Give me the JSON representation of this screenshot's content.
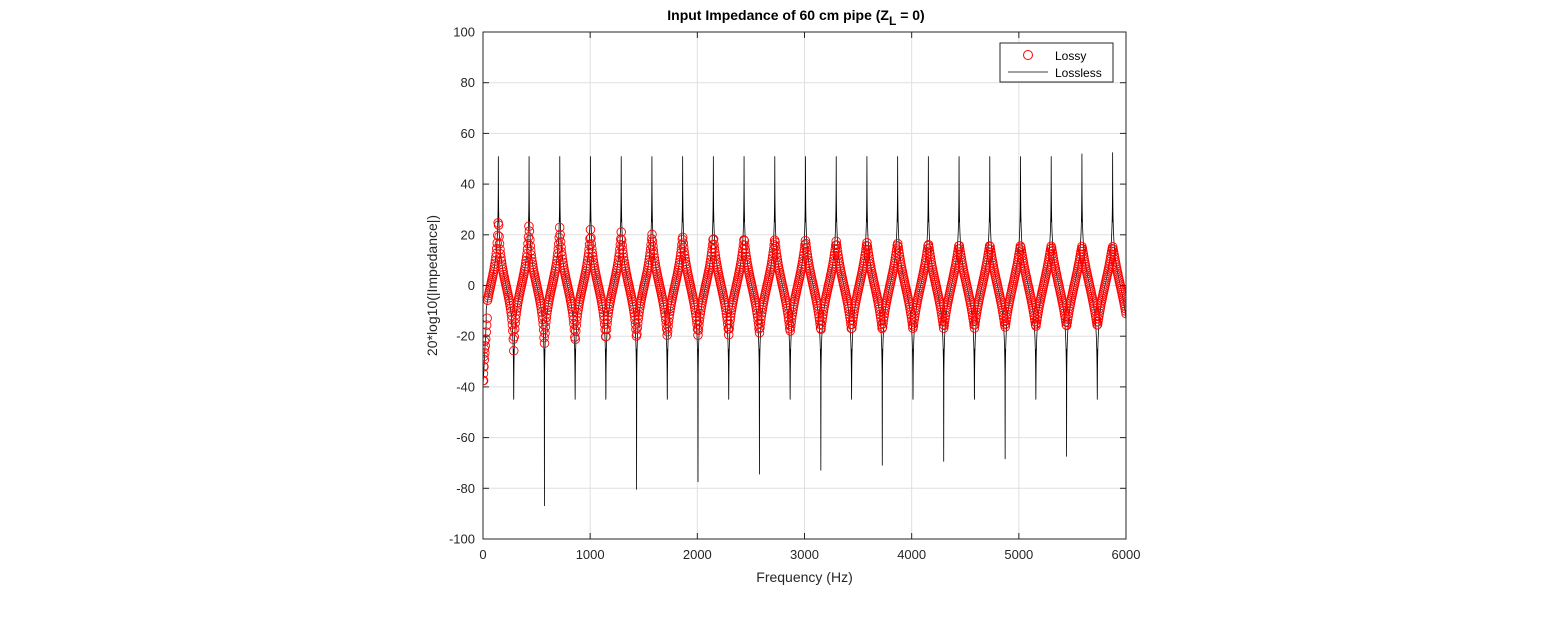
{
  "chart_data": {
    "type": "line",
    "title_main": "Input Impedance of 60 cm pipe (Z",
    "title_sub": "L",
    "title_tail": " = 0)",
    "xlabel": "Frequency (Hz)",
    "ylabel": "20*log10(|Impedance|)",
    "xlim": [
      0,
      6000
    ],
    "ylim": [
      -100,
      100
    ],
    "x_ticks": [
      0,
      1000,
      2000,
      3000,
      4000,
      5000,
      6000
    ],
    "y_ticks": [
      -100,
      -80,
      -60,
      -40,
      -20,
      0,
      20,
      40,
      60,
      80,
      100
    ],
    "grid": true,
    "legend_position": "top-right",
    "pipe": {
      "fundamental_hz": 286.6,
      "resonance_count": 21
    },
    "series": [
      {
        "name": "Lossy",
        "style": "circle-markers",
        "color": "#ff0000",
        "peak_db": [
          31,
          26.5,
          24.5,
          22.5,
          21.5,
          21,
          20,
          19.5,
          19,
          18.5,
          18,
          17.5,
          17,
          16.8,
          16.5,
          16.2,
          16,
          15.8,
          15.6,
          15.4,
          15.3
        ],
        "trough_db": [
          -28,
          -25,
          -23.5,
          -22.5,
          -21.5,
          -20.5,
          -20,
          -19.5,
          -19,
          -18.5,
          -18,
          -17.8,
          -17.5,
          -17.2,
          -17,
          -16.8,
          -16.5,
          -16.3,
          -16.2,
          -16,
          -15.8
        ],
        "start_db": -37.5,
        "end_db": -15
      },
      {
        "name": "Lossless",
        "style": "line",
        "color": "#000000",
        "peak_db": [
          51,
          51,
          51,
          51,
          51,
          51,
          51,
          51,
          51,
          51,
          51,
          51,
          51,
          51,
          51,
          51,
          51,
          51,
          51,
          52,
          52.5
        ],
        "trough_db": [
          -45,
          -87,
          -45,
          -45,
          -80.5,
          -45,
          -77.5,
          -45,
          -74.5,
          -45,
          -73,
          -45,
          -71,
          -45,
          -69.5,
          -45,
          -68.5,
          -45,
          -67.5,
          -45,
          -66.5
        ],
        "start_db": -40,
        "end_db": -15
      }
    ]
  }
}
